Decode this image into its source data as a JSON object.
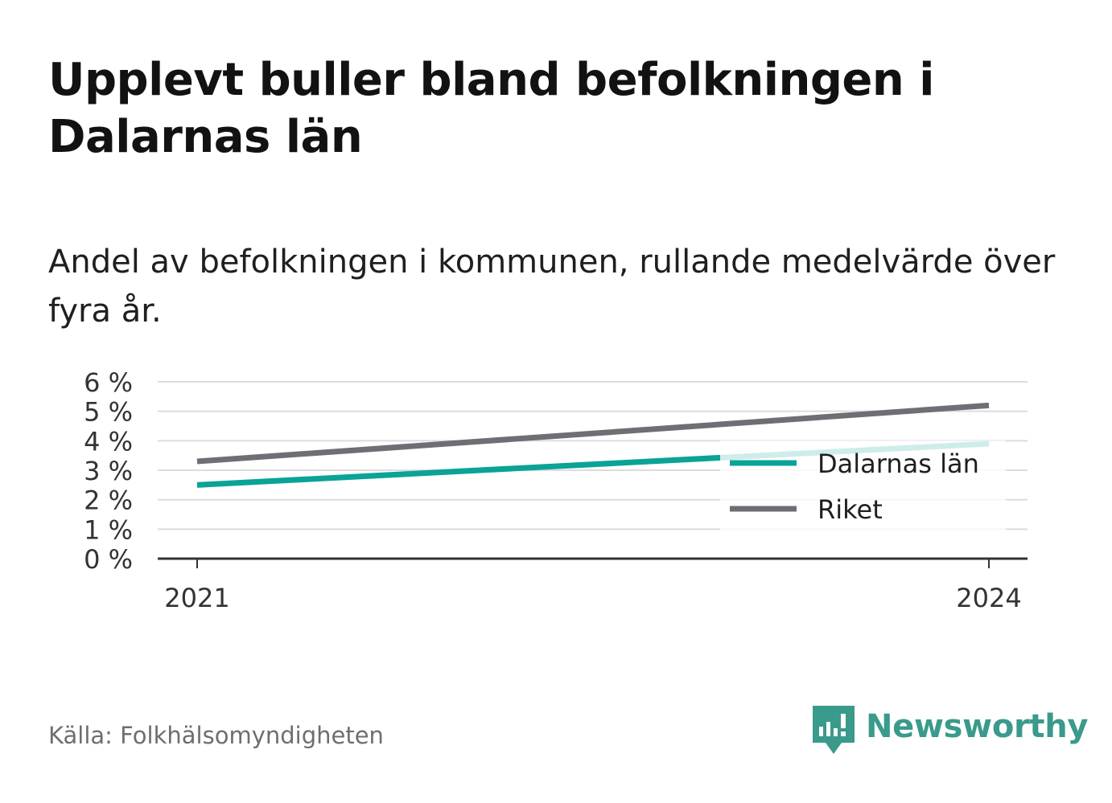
{
  "title": "Upplevt buller bland befolkningen i Dalarnas län",
  "subtitle": "Andel av befolkningen i kommunen, rullande medelvärde över fyra år.",
  "source": "Källa: Folkhälsomyndigheten",
  "logo": {
    "text": "Newsworthy",
    "icon": "newsworthy-logo-icon",
    "color": "#3a9a8c"
  },
  "chart_data": {
    "type": "line",
    "x": [
      2021,
      2024
    ],
    "x_tick_labels": [
      "2021",
      "2024"
    ],
    "series": [
      {
        "name": "Dalarnas län",
        "values": [
          2.5,
          3.9
        ],
        "color": "#0aa396"
      },
      {
        "name": "Riket",
        "values": [
          3.3,
          5.2
        ],
        "color": "#6f6e74"
      }
    ],
    "ylim": [
      0,
      6
    ],
    "y_ticks": [
      0,
      1,
      2,
      3,
      4,
      5,
      6
    ],
    "y_tick_labels": [
      "0 %",
      "1 %",
      "2 %",
      "3 %",
      "4 %",
      "5 %",
      "6 %"
    ],
    "grid": true,
    "legend_position": "bottom-right",
    "xlabel": "",
    "ylabel": ""
  }
}
